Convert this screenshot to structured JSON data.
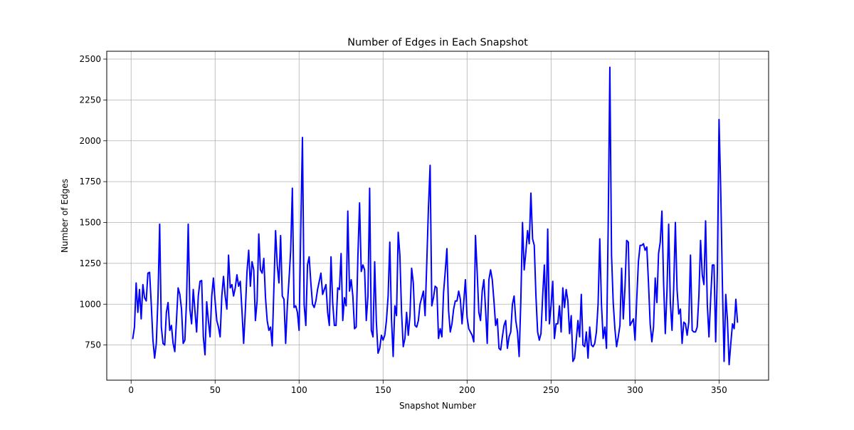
{
  "chart_data": {
    "type": "line",
    "title": "Number of Edges in Each Snapshot",
    "xlabel": "Snapshot Number",
    "ylabel": "Number of Edges",
    "xlim": [
      -14.5,
      379.5
    ],
    "ylim": [
      535,
      2548
    ],
    "xticks": [
      0,
      50,
      100,
      150,
      200,
      250,
      300,
      350
    ],
    "xtick_labels": [
      "0",
      "50",
      "100",
      "150",
      "200",
      "250",
      "300",
      "350"
    ],
    "yticks": [
      750,
      1000,
      1250,
      1500,
      1750,
      2000,
      2250,
      2500
    ],
    "ytick_labels": [
      "750",
      "1000",
      "1250",
      "1500",
      "1750",
      "2000",
      "2250",
      "2500"
    ],
    "grid": true,
    "series": [
      {
        "name": "Number of Edges",
        "color": "#0000ff",
        "x": [
          1,
          2,
          3,
          4,
          5,
          6,
          7,
          8,
          9,
          10,
          11,
          12,
          13,
          14,
          15,
          16,
          17,
          18,
          19,
          20,
          21,
          22,
          23,
          24,
          25,
          26,
          27,
          28,
          29,
          30,
          31,
          32,
          33,
          34,
          35,
          36,
          37,
          38,
          39,
          40,
          41,
          42,
          43,
          44,
          45,
          46,
          47,
          48,
          49,
          50,
          51,
          52,
          53,
          54,
          55,
          56,
          57,
          58,
          59,
          60,
          61,
          62,
          63,
          64,
          65,
          66,
          67,
          68,
          69,
          70,
          71,
          72,
          73,
          74,
          75,
          76,
          77,
          78,
          79,
          80,
          81,
          82,
          83,
          84,
          85,
          86,
          87,
          88,
          89,
          90,
          91,
          92,
          93,
          94,
          95,
          96,
          97,
          98,
          99,
          100,
          101,
          102,
          103,
          104,
          105,
          106,
          107,
          108,
          109,
          110,
          111,
          112,
          113,
          114,
          115,
          116,
          117,
          118,
          119,
          120,
          121,
          122,
          123,
          124,
          125,
          126,
          127,
          128,
          129,
          130,
          131,
          132,
          133,
          134,
          135,
          136,
          137,
          138,
          139,
          140,
          141,
          142,
          143,
          144,
          145,
          146,
          147,
          148,
          149,
          150,
          151,
          152,
          153,
          154,
          155,
          156,
          157,
          158,
          159,
          160,
          161,
          162,
          163,
          164,
          165,
          166,
          167,
          168,
          169,
          170,
          171,
          172,
          173,
          174,
          175,
          176,
          177,
          178,
          179,
          180,
          181,
          182,
          183,
          184,
          185,
          186,
          187,
          188,
          189,
          190,
          191,
          192,
          193,
          194,
          195,
          196,
          197,
          198,
          199,
          200,
          201,
          202,
          203,
          204,
          205,
          206,
          207,
          208,
          209,
          210,
          211,
          212,
          213,
          214,
          215,
          216,
          217,
          218,
          219,
          220,
          221,
          222,
          223,
          224,
          225,
          226,
          227,
          228,
          229,
          230,
          231,
          232,
          233,
          234,
          235,
          236,
          237,
          238,
          239,
          240,
          241,
          242,
          243,
          244,
          245,
          246,
          247,
          248,
          249,
          250,
          251,
          252,
          253,
          254,
          255,
          256,
          257,
          258,
          259,
          260,
          261,
          262,
          263,
          264,
          265,
          266,
          267,
          268,
          269,
          270,
          271,
          272,
          273,
          274,
          275,
          276,
          277,
          278,
          279,
          280,
          281,
          282,
          283,
          284,
          285,
          286,
          287,
          288,
          289,
          290,
          291,
          292,
          293,
          294,
          295,
          296,
          297,
          298,
          299,
          300,
          301,
          302,
          303,
          304,
          305,
          306,
          307,
          308,
          309,
          310,
          311,
          312,
          313,
          314,
          315,
          316,
          317,
          318,
          319,
          320,
          321,
          322,
          323,
          324,
          325,
          326,
          327,
          328,
          329,
          330,
          331,
          332,
          333,
          334,
          335,
          336,
          337,
          338,
          339,
          340,
          341,
          342,
          343,
          344,
          345,
          346,
          347,
          348,
          349,
          350,
          351,
          352,
          353,
          354,
          355,
          356,
          357,
          358,
          359,
          360,
          361
        ],
        "y": [
          790,
          860,
          1130,
          950,
          1090,
          910,
          1120,
          1040,
          1020,
          1190,
          1195,
          1000,
          780,
          670,
          760,
          1040,
          1490,
          860,
          760,
          750,
          950,
          1010,
          840,
          870,
          760,
          710,
          900,
          1100,
          1060,
          970,
          760,
          780,
          1020,
          1490,
          970,
          880,
          1090,
          960,
          830,
          1050,
          1140,
          1145,
          800,
          690,
          1015,
          900,
          800,
          1050,
          1160,
          1020,
          900,
          860,
          800,
          1050,
          1170,
          1050,
          970,
          1300,
          1100,
          1120,
          1050,
          1100,
          1180,
          1110,
          1140,
          960,
          760,
          960,
          1200,
          1330,
          1110,
          1260,
          1210,
          900,
          1020,
          1430,
          1210,
          1190,
          1280,
          1040,
          900,
          840,
          860,
          745,
          1100,
          1450,
          1240,
          1130,
          1420,
          1050,
          1030,
          760,
          990,
          1150,
          1330,
          1710,
          980,
          990,
          950,
          840,
          1460,
          2020,
          1000,
          870,
          1240,
          1290,
          1130,
          1000,
          980,
          1020,
          1090,
          1140,
          1190,
          1060,
          1090,
          1120,
          950,
          870,
          1290,
          1010,
          870,
          870,
          1100,
          1090,
          1310,
          900,
          1040,
          990,
          1570,
          1080,
          1150,
          1050,
          850,
          860,
          1290,
          1620,
          1200,
          1240,
          1210,
          900,
          1050,
          1710,
          840,
          800,
          1260,
          890,
          700,
          730,
          810,
          780,
          810,
          900,
          1050,
          1380,
          910,
          680,
          990,
          930,
          1440,
          1300,
          950,
          740,
          790,
          950,
          810,
          930,
          1220,
          1130,
          870,
          860,
          900,
          1000,
          1040,
          1080,
          930,
          1250,
          1590,
          1850,
          990,
          1040,
          1110,
          1100,
          790,
          850,
          800,
          1070,
          1200,
          1340,
          960,
          830,
          880,
          970,
          1020,
          1020,
          1080,
          1030,
          880,
          1010,
          1150,
          920,
          850,
          830,
          810,
          770,
          1420,
          1200,
          950,
          900,
          1080,
          1150,
          970,
          760,
          1150,
          1210,
          1150,
          1020,
          870,
          910,
          730,
          720,
          800,
          870,
          900,
          730,
          800,
          830,
          1000,
          1050,
          900,
          830,
          680,
          1020,
          1500,
          1210,
          1320,
          1450,
          1370,
          1680,
          1400,
          1360,
          1050,
          830,
          780,
          820,
          1050,
          1240,
          900,
          1460,
          880,
          990,
          1140,
          790,
          880,
          880,
          990,
          830,
          1100,
          980,
          1090,
          1020,
          820,
          930,
          650,
          670,
          780,
          900,
          800,
          1060,
          750,
          740,
          830,
          670,
          860,
          750,
          740,
          760,
          830,
          1000,
          1400,
          1000,
          790,
          860,
          730,
          1470,
          2450,
          1300,
          1010,
          850,
          740,
          800,
          870,
          1220,
          910,
          1100,
          1390,
          1380,
          870,
          890,
          910,
          780,
          1030,
          1260,
          1360,
          1360,
          1370,
          1330,
          1350,
          1130,
          880,
          770,
          860,
          1160,
          1010,
          1310,
          1380,
          1570,
          1130,
          820,
          1080,
          1490,
          1010,
          840,
          1100,
          1500,
          1090,
          940,
          970,
          760,
          890,
          880,
          810,
          890,
          1300,
          840,
          830,
          830,
          860,
          1050,
          1390,
          1180,
          1120,
          1510,
          1000,
          800,
          1030,
          1240,
          1240,
          770,
          1200,
          2130,
          1700,
          1120,
          650,
          1060,
          900,
          630,
          760,
          880,
          850,
          1030,
          890
        ]
      }
    ]
  }
}
